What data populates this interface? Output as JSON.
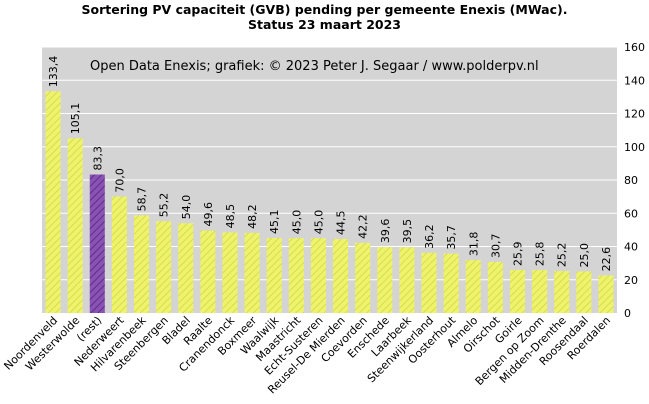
{
  "chart_data": {
    "type": "bar",
    "title": "Sortering PV capaciteit (GVB) pending per gemeente Enexis (MWac).",
    "subtitle": "Status 23 maart 2023",
    "annotation": "Open Data Enexis;  grafiek:  © 2023  Peter J. Segaar / www.polderpv.nl",
    "categories": [
      "Noordenveld",
      "Westerwolde",
      "(rest)",
      "Nederweert",
      "Hilvarenbeek",
      "Steenbergen",
      "Bladel",
      "Raalte",
      "Cranendonck",
      "Boxmeer",
      "Waalwijk",
      "Maastricht",
      "Echt-Susteren",
      "Reusel-De Mierden",
      "Coevorden",
      "Enschede",
      "Laarbeek",
      "Steenwijkerland",
      "Oosterhout",
      "Almelo",
      "Oirschot",
      "Goirle",
      "Bergen op Zoom",
      "Midden-Drenthe",
      "Roosendaal",
      "Roerdalen"
    ],
    "values": [
      133.4,
      105.1,
      83.3,
      70.0,
      58.7,
      55.2,
      54.0,
      49.6,
      48.5,
      48.2,
      45.1,
      45.0,
      45.0,
      44.5,
      42.2,
      39.6,
      39.5,
      36.2,
      35.7,
      31.8,
      30.7,
      25.9,
      25.8,
      25.2,
      25.0,
      22.6
    ],
    "value_labels": [
      "133,4",
      "105,1",
      "83,3",
      "70,0",
      "58,7",
      "55,2",
      "54,0",
      "49,6",
      "48,5",
      "48,2",
      "45,1",
      "45,0",
      "45,0",
      "44,5",
      "42,2",
      "39,6",
      "39,5",
      "36,2",
      "35,7",
      "31,8",
      "30,7",
      "25,9",
      "25,8",
      "25,2",
      "25,0",
      "22,6"
    ],
    "highlight_category": "(rest)",
    "ylim": [
      0,
      160
    ],
    "yticks": [
      0,
      20,
      40,
      60,
      80,
      100,
      120,
      140,
      160
    ],
    "yaxis_side": "right",
    "grid": true,
    "colors": {
      "bar": "#eef36e",
      "bar_hatch": "#d9dc48",
      "highlight": "#8a52b4",
      "highlight_hatch": "#5e2e86",
      "plot_bg": "#d4d4d4",
      "grid": "#ffffff"
    }
  }
}
